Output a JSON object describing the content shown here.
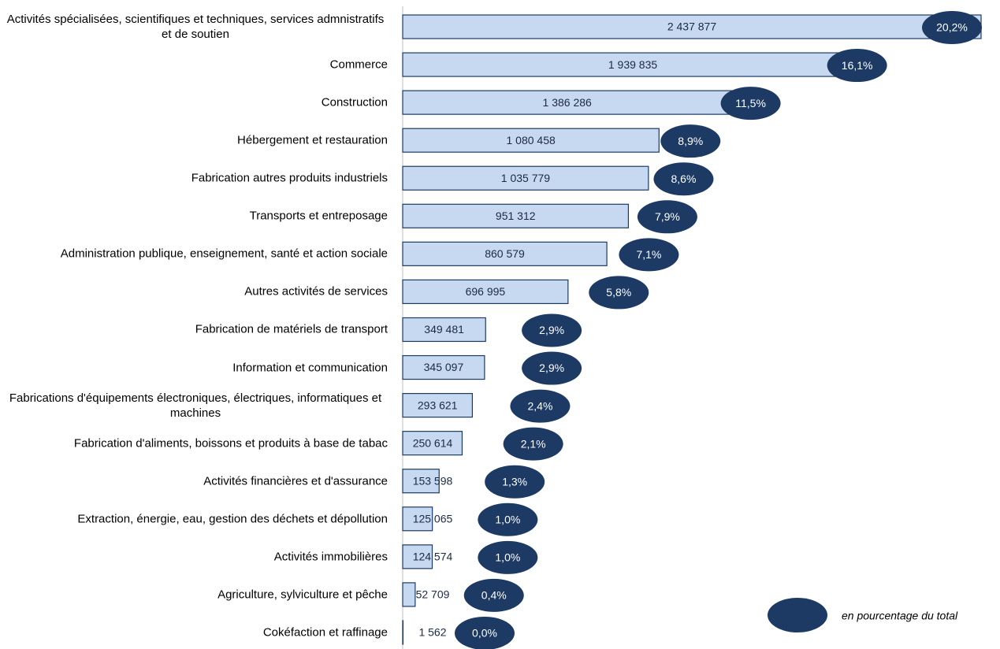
{
  "chart_data": {
    "type": "bar",
    "orientation": "horizontal",
    "categories": [
      "Activités spécialisées, scientifiques et techniques, services admnistratifs et de soutien",
      "Commerce",
      "Construction",
      "Hébergement et restauration",
      "Fabrication autres produits industriels",
      "Transports et entreposage",
      "Administration publique, enseignement, santé et action sociale",
      "Autres activités de services",
      "Fabrication de matériels de transport",
      "Information et communication",
      "Fabrications d'équipements électroniques, électriques, informatiques et machines",
      "Fabrication d'aliments, boissons et produits à base de tabac",
      "Activités financières et d'assurance",
      "Extraction, énergie, eau, gestion des déchets et dépollution",
      "Activités immobilières",
      "Agriculture, sylviculture et pêche",
      "Cokéfaction et raffinage"
    ],
    "series": [
      {
        "color": "#c6d9f1",
        "values": [
          2437877,
          1939835,
          1386286,
          1080458,
          1035779,
          951312,
          860579,
          696995,
          349481,
          345097,
          293621,
          250614,
          153598,
          125065,
          124574,
          52709,
          1562
        ],
        "value_labels": [
          "2 437 877",
          "1 939 835",
          "1 386 286",
          "1 080 458",
          "1 035 779",
          "951 312",
          "860 579",
          "696 995",
          "349 481",
          "345 097",
          "293 621",
          "250 614",
          "153 598",
          "125 065",
          "124 574",
          "52 709",
          "1 562"
        ]
      },
      {
        "name": "en pourcentage du total",
        "color": "#1c3a64",
        "values": [
          20.2,
          16.1,
          11.5,
          8.9,
          8.6,
          7.9,
          7.1,
          5.8,
          2.9,
          2.9,
          2.4,
          2.1,
          1.3,
          1.0,
          1.0,
          0.4,
          0.0
        ],
        "value_labels": [
          "20,2%",
          "16,1%",
          "11,5%",
          "8,9%",
          "8,6%",
          "7,9%",
          "7,1%",
          "5,8%",
          "2,9%",
          "2,9%",
          "2,4%",
          "2,1%",
          "1,3%",
          "1,0%",
          "1,0%",
          "0,4%",
          "0,0%"
        ]
      }
    ]
  }
}
